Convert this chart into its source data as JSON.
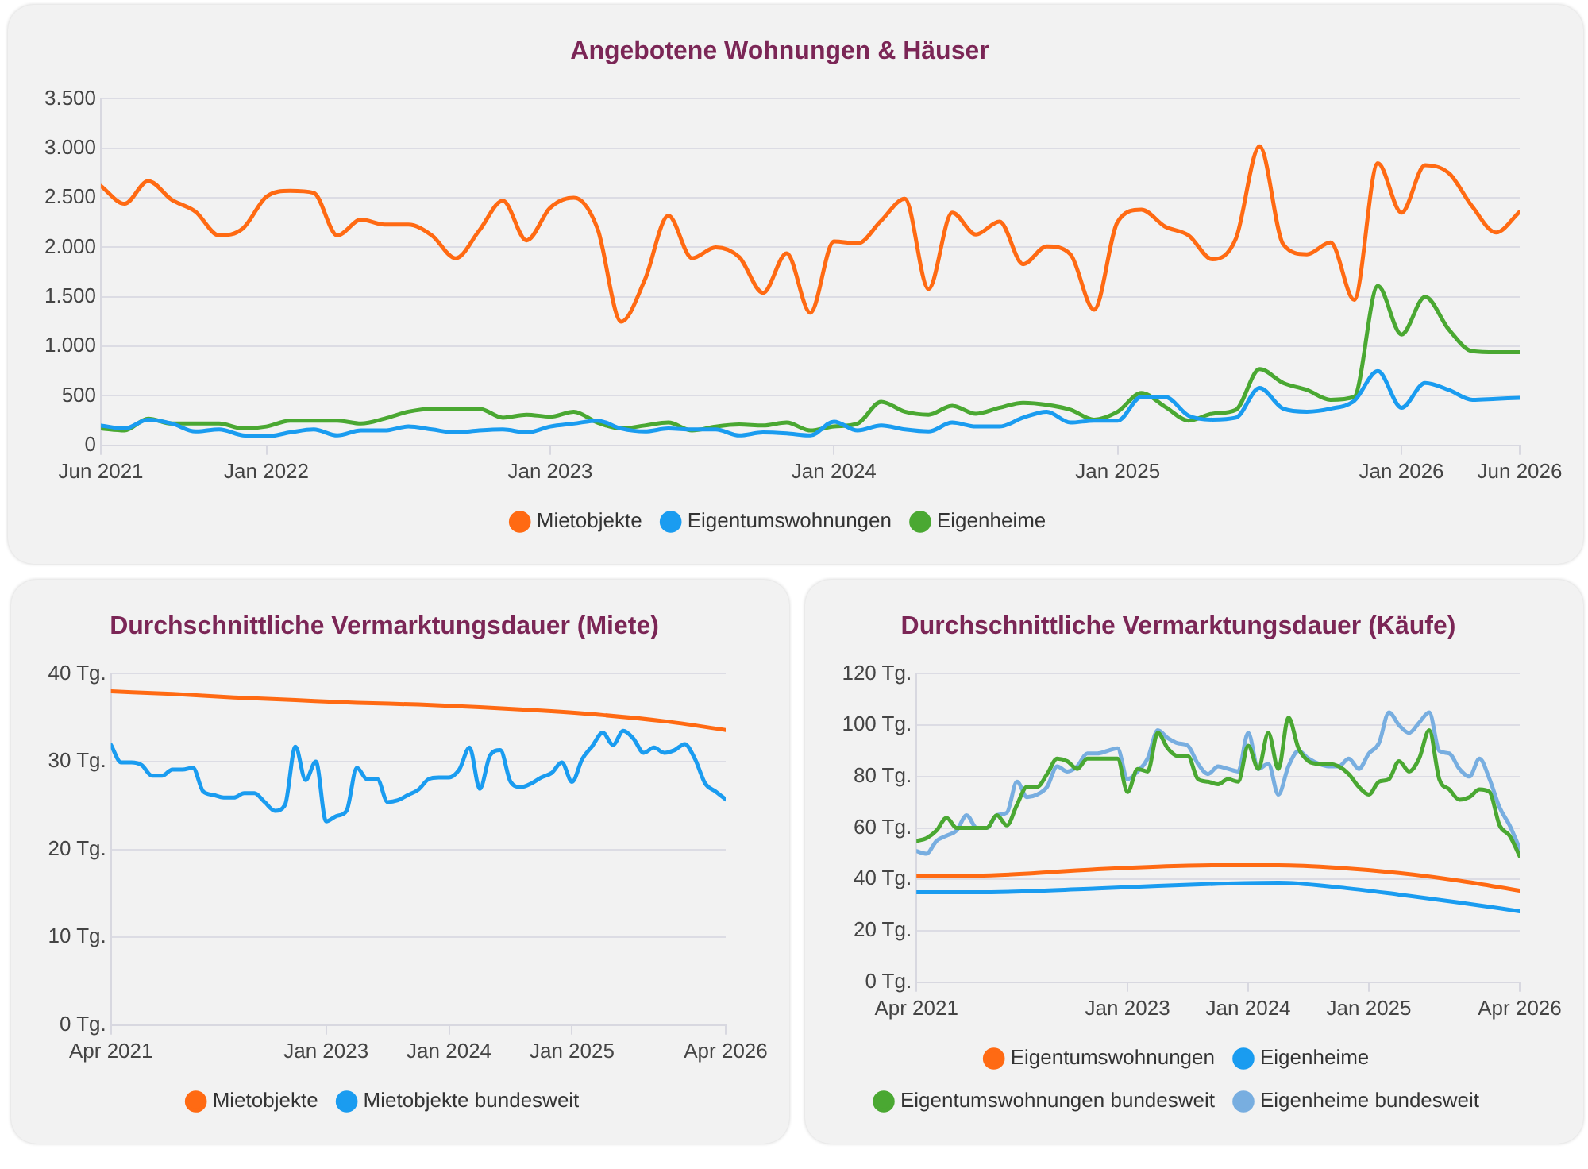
{
  "chart_data": [
    {
      "type": "line",
      "title": "Angebotene Wohnungen & Häuser",
      "x": [
        "2021-06",
        "2021-07",
        "2021-08",
        "2021-09",
        "2021-10",
        "2021-11",
        "2021-12",
        "2022-01",
        "2022-02",
        "2022-03",
        "2022-04",
        "2022-05",
        "2022-06",
        "2022-07",
        "2022-08",
        "2022-09",
        "2022-10",
        "2022-11",
        "2022-12",
        "2023-01",
        "2023-02",
        "2023-03",
        "2023-04",
        "2023-05",
        "2023-06",
        "2023-07",
        "2023-08",
        "2023-09",
        "2023-10",
        "2023-11",
        "2023-12",
        "2024-01",
        "2024-02",
        "2024-03",
        "2024-04",
        "2024-05",
        "2024-06",
        "2024-07",
        "2024-08",
        "2024-09",
        "2024-10",
        "2024-11",
        "2024-12",
        "2025-01",
        "2025-02",
        "2025-03",
        "2025-04",
        "2025-05",
        "2025-06",
        "2025-07",
        "2025-08",
        "2025-09",
        "2025-10",
        "2025-11",
        "2025-12",
        "2026-01",
        "2026-02",
        "2026-03",
        "2026-04",
        "2026-05",
        "2026-06"
      ],
      "series": [
        {
          "name": "Mietobjekte",
          "color": "#ff6a13",
          "values": [
            2620,
            2440,
            2670,
            2480,
            2360,
            2120,
            2190,
            2510,
            2570,
            2550,
            2120,
            2280,
            2230,
            2230,
            2120,
            1890,
            2170,
            2470,
            2070,
            2400,
            2500,
            2190,
            1250,
            1670,
            2320,
            1890,
            2000,
            1900,
            1540,
            1940,
            1340,
            2060,
            2040,
            2270,
            2490,
            1580,
            2350,
            2130,
            2260,
            1830,
            2010,
            1930,
            1370,
            2260,
            2380,
            2210,
            2120,
            1880,
            2090,
            3020,
            2030,
            1930,
            2050,
            1470,
            2850,
            2350,
            2830,
            2750,
            2410,
            2150,
            2360
          ]
        },
        {
          "name": "Eigentumswohnungen",
          "color": "#1a9cf0",
          "values": [
            200,
            170,
            260,
            220,
            140,
            160,
            100,
            90,
            130,
            160,
            100,
            150,
            150,
            190,
            160,
            130,
            150,
            160,
            130,
            190,
            220,
            250,
            170,
            140,
            170,
            160,
            160,
            100,
            130,
            120,
            100,
            240,
            150,
            200,
            160,
            140,
            230,
            190,
            190,
            280,
            340,
            230,
            250,
            250,
            490,
            490,
            300,
            260,
            280,
            580,
            370,
            340,
            370,
            450,
            750,
            380,
            630,
            560,
            460,
            470,
            480
          ]
        },
        {
          "name": "Eigenheime",
          "color": "#4aa832",
          "values": [
            170,
            150,
            270,
            220,
            220,
            220,
            170,
            190,
            250,
            250,
            250,
            220,
            270,
            340,
            370,
            370,
            370,
            280,
            310,
            290,
            340,
            230,
            170,
            200,
            230,
            150,
            190,
            210,
            200,
            230,
            150,
            190,
            220,
            440,
            340,
            310,
            400,
            320,
            380,
            430,
            410,
            360,
            260,
            340,
            530,
            390,
            250,
            320,
            360,
            770,
            630,
            560,
            460,
            490,
            1610,
            1120,
            1500,
            1170,
            950,
            940,
            940
          ]
        }
      ],
      "xlim": [
        "2021-06",
        "2026-06"
      ],
      "xticks": [
        {
          "value": "2021-06",
          "label": "Jun 2021"
        },
        {
          "value": "2022-01",
          "label": "Jan 2022"
        },
        {
          "value": "2023-01",
          "label": "Jan 2023"
        },
        {
          "value": "2024-01",
          "label": "Jan 2024"
        },
        {
          "value": "2025-01",
          "label": "Jan 2025"
        },
        {
          "value": "2026-01",
          "label": "Jan 2026"
        },
        {
          "value": "2026-06",
          "label": "Jun 2026"
        }
      ],
      "ylim": [
        0,
        3500
      ],
      "yticks": [
        0,
        500,
        {
          "value": 1000,
          "label": "1.000"
        },
        {
          "value": 1500,
          "label": "1.500"
        },
        {
          "value": 2000,
          "label": "2.000"
        },
        {
          "value": 2500,
          "label": "2.500"
        },
        {
          "value": 3000,
          "label": "3.000"
        },
        {
          "value": 3500,
          "label": "3.500"
        }
      ],
      "grid": "y",
      "legend": "bottom"
    },
    {
      "type": "line",
      "title": "Durchschnittliche Vermarktungsdauer (Miete)",
      "x": [
        "2021-04",
        "2021-05",
        "2021-06",
        "2021-07",
        "2021-08",
        "2021-09",
        "2021-10",
        "2021-11",
        "2021-12",
        "2022-01",
        "2022-02",
        "2022-03",
        "2022-04",
        "2022-05",
        "2022-06",
        "2022-07",
        "2022-08",
        "2022-09",
        "2022-10",
        "2022-11",
        "2022-12",
        "2023-01",
        "2023-02",
        "2023-03",
        "2023-04",
        "2023-05",
        "2023-06",
        "2023-07",
        "2023-08",
        "2023-09",
        "2023-10",
        "2023-11",
        "2023-12",
        "2024-01",
        "2024-02",
        "2024-03",
        "2024-04",
        "2024-05",
        "2024-06",
        "2024-07",
        "2024-08",
        "2024-09",
        "2024-10",
        "2024-11",
        "2024-12",
        "2025-01",
        "2025-02",
        "2025-03",
        "2025-04",
        "2025-05",
        "2025-06",
        "2025-07",
        "2025-08",
        "2025-09",
        "2025-10",
        "2025-11",
        "2025-12",
        "2026-01",
        "2026-02",
        "2026-03",
        "2026-04"
      ],
      "series": [
        {
          "name": "Mietobjekte",
          "color": "#ff6a13",
          "x": [
            "2021-04",
            "2021-10",
            "2022-04",
            "2022-10",
            "2023-04",
            "2023-10",
            "2024-04",
            "2024-10",
            "2025-04",
            "2025-10",
            "2026-04"
          ],
          "values": [
            38.0,
            37.7,
            37.3,
            37.0,
            36.7,
            36.5,
            36.2,
            35.8,
            35.3,
            34.6,
            33.6
          ]
        },
        {
          "name": "Mietobjekte bundesweit",
          "color": "#1a9cf0",
          "values": [
            31.9,
            29.9,
            29.9,
            29.6,
            28.4,
            28.4,
            29.1,
            29.1,
            29.3,
            26.6,
            26.2,
            25.9,
            25.9,
            26.4,
            26.4,
            25.4,
            24.4,
            25.1,
            31.7,
            27.9,
            30.0,
            23.2,
            23.8,
            24.4,
            29.3,
            28.0,
            28.0,
            25.4,
            25.6,
            26.2,
            26.8,
            28.0,
            28.2,
            28.2,
            29.1,
            31.6,
            26.9,
            30.7,
            31.3,
            27.7,
            27.1,
            27.5,
            28.2,
            28.7,
            29.9,
            27.7,
            30.3,
            31.8,
            33.3,
            31.9,
            33.5,
            32.6,
            31.0,
            31.6,
            31.0,
            31.3,
            32.0,
            30.3,
            27.5,
            26.6,
            25.7
          ]
        }
      ],
      "xlim": [
        "2021-04",
        "2026-04"
      ],
      "xticks": [
        {
          "value": "2021-04",
          "label": "Apr 2021"
        },
        {
          "value": "2023-01",
          "label": "Jan 2023"
        },
        {
          "value": "2024-01",
          "label": "Jan 2024"
        },
        {
          "value": "2025-01",
          "label": "Jan 2025"
        },
        {
          "value": "2026-04",
          "label": "Apr 2026"
        }
      ],
      "ylim": [
        0,
        40
      ],
      "yticks": [
        {
          "value": 0,
          "label": "0 Tg."
        },
        {
          "value": 10,
          "label": "10 Tg."
        },
        {
          "value": 20,
          "label": "20 Tg."
        },
        {
          "value": 30,
          "label": "30 Tg."
        },
        {
          "value": 40,
          "label": "40 Tg."
        }
      ],
      "grid": "y",
      "legend": "bottom"
    },
    {
      "type": "line",
      "title": "Durchschnittliche Vermarktungsdauer (Käufe)",
      "x": [
        "2021-04",
        "2021-05",
        "2021-06",
        "2021-07",
        "2021-08",
        "2021-09",
        "2021-10",
        "2021-11",
        "2021-12",
        "2022-01",
        "2022-02",
        "2022-03",
        "2022-04",
        "2022-05",
        "2022-06",
        "2022-07",
        "2022-08",
        "2022-09",
        "2022-10",
        "2022-11",
        "2022-12",
        "2023-01",
        "2023-02",
        "2023-03",
        "2023-04",
        "2023-05",
        "2023-06",
        "2023-07",
        "2023-08",
        "2023-09",
        "2023-10",
        "2023-11",
        "2023-12",
        "2024-01",
        "2024-02",
        "2024-03",
        "2024-04",
        "2024-05",
        "2024-06",
        "2024-07",
        "2024-08",
        "2024-09",
        "2024-10",
        "2024-11",
        "2024-12",
        "2025-01",
        "2025-02",
        "2025-03",
        "2025-04",
        "2025-05",
        "2025-06",
        "2025-07",
        "2025-08",
        "2025-09",
        "2025-10",
        "2025-11",
        "2025-12",
        "2026-01",
        "2026-02",
        "2026-03",
        "2026-04"
      ],
      "series": [
        {
          "name": "Eigentumswohnungen",
          "color": "#ff6a13",
          "x": [
            "2021-04",
            "2021-10",
            "2022-04",
            "2022-10",
            "2023-04",
            "2023-10",
            "2024-04",
            "2024-10",
            "2025-04",
            "2025-10",
            "2026-04"
          ],
          "values": [
            41.5,
            41.5,
            42.5,
            44,
            45,
            45.5,
            45.5,
            44.5,
            42.5,
            39.5,
            35.6
          ]
        },
        {
          "name": "Eigenheime",
          "color": "#1a9cf0",
          "x": [
            "2021-04",
            "2021-10",
            "2022-04",
            "2022-10",
            "2023-04",
            "2023-10",
            "2024-04",
            "2024-10",
            "2025-04",
            "2025-10",
            "2026-04"
          ],
          "values": [
            35,
            35,
            35.5,
            36.5,
            37.5,
            38.3,
            38.7,
            36.9,
            34.1,
            31,
            27.6
          ]
        },
        {
          "name": "Eigentumswohnungen bundesweit",
          "color": "#4aa832",
          "values": [
            55,
            56,
            59,
            64,
            60,
            60,
            60,
            60,
            65,
            61,
            69,
            76,
            76,
            81,
            87,
            86,
            83,
            87,
            87,
            87,
            87,
            74,
            83,
            82,
            97,
            91,
            88,
            88,
            79,
            78,
            77,
            79,
            78,
            92,
            83,
            97,
            83,
            103,
            91,
            86,
            85,
            85,
            84,
            81,
            76,
            73,
            78,
            79,
            86,
            82,
            87,
            98,
            79,
            75,
            71,
            72,
            75,
            74,
            61,
            57,
            49
          ]
        },
        {
          "name": "Eigenheime bundesweit",
          "color": "#78aee0",
          "values": [
            51,
            50,
            55,
            57,
            59,
            65,
            60,
            60,
            65,
            66,
            78,
            72,
            73,
            76,
            84,
            82,
            84,
            89,
            89,
            90,
            91,
            79,
            82,
            87,
            98,
            95,
            93,
            92,
            85,
            81,
            84,
            83,
            82,
            97,
            83,
            85,
            73,
            84,
            90,
            87,
            85,
            84,
            84,
            87,
            83,
            89,
            93,
            105,
            100,
            97,
            101,
            105,
            90,
            89,
            83,
            80,
            87,
            79,
            68,
            61,
            52
          ]
        }
      ],
      "xlim": [
        "2021-04",
        "2026-04"
      ],
      "xticks": [
        {
          "value": "2021-04",
          "label": "Apr 2021"
        },
        {
          "value": "2023-01",
          "label": "Jan 2023"
        },
        {
          "value": "2024-01",
          "label": "Jan 2024"
        },
        {
          "value": "2025-01",
          "label": "Jan 2025"
        },
        {
          "value": "2026-04",
          "label": "Apr 2026"
        }
      ],
      "ylim": [
        0,
        120
      ],
      "yticks": [
        {
          "value": 0,
          "label": "0 Tg."
        },
        {
          "value": 20,
          "label": "20 Tg."
        },
        {
          "value": 40,
          "label": "40 Tg."
        },
        {
          "value": 60,
          "label": "60 Tg."
        },
        {
          "value": 80,
          "label": "80 Tg."
        },
        {
          "value": 100,
          "label": "100 Tg."
        },
        {
          "value": 120,
          "label": "120 Tg."
        }
      ],
      "grid": "y",
      "legend": "bottom"
    }
  ]
}
